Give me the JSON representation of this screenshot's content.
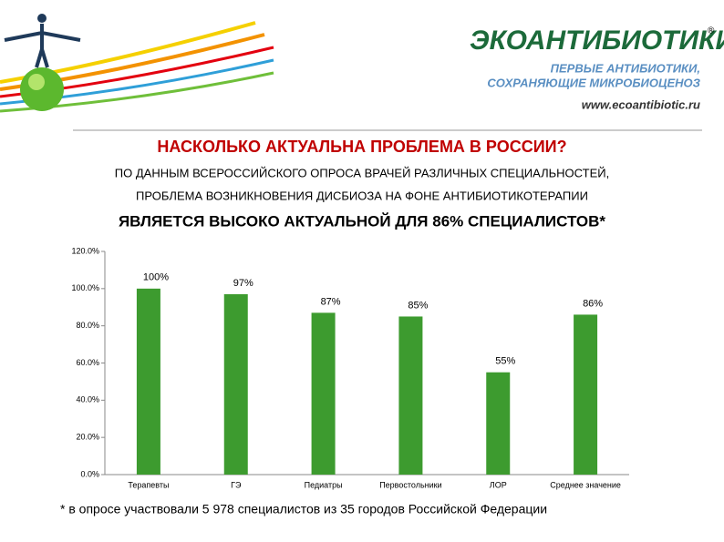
{
  "header": {
    "logo": "ЭКОАНТИБИОТИКИ",
    "registered": "®",
    "tagline1": "ПЕРВЫЕ АНТИБИОТИКИ,",
    "tagline2": "СОХРАНЯЮЩИЕ МИКРОБИОЦЕНОЗ",
    "url": "www.ecoantibiotic.ru"
  },
  "chart_data": {
    "type": "bar",
    "title": "НАСКОЛЬКО АКТУАЛЬНА ПРОБЛЕМА В РОССИИ?",
    "subtitle": [
      "ПО ДАННЫМ ВСЕРОССИЙСКОГО ОПРОСА ВРАЧЕЙ РАЗЛИЧНЫХ СПЕЦИАЛЬНОСТЕЙ,",
      "ПРОБЛЕМА ВОЗНИКНОВЕНИЯ ДИСБИОЗА НА ФОНЕ АНТИБИОТИКОТЕРАПИИ"
    ],
    "headline": "ЯВЛЯЕТСЯ ВЫСОКО АКТУАЛЬНОЙ ДЛЯ 86% СПЕЦИАЛИСТОВ*",
    "categories": [
      "Терапевты",
      "ГЭ",
      "Педиатры",
      "Первостольники",
      "ЛОР",
      "Среднее значение"
    ],
    "values": [
      100,
      97,
      87,
      85,
      55,
      86
    ],
    "value_labels": [
      "100%",
      "97%",
      "87%",
      "85%",
      "55%",
      "86%"
    ],
    "color": "#3d9b2f",
    "ylim": [
      0,
      120
    ],
    "yticks": [
      {
        "value": 0,
        "label": "0.0%"
      },
      {
        "value": 20,
        "label": "20.0%"
      },
      {
        "value": 40,
        "label": "40.0%"
      },
      {
        "value": 60,
        "label": "60.0%"
      },
      {
        "value": 80,
        "label": "80.0%"
      },
      {
        "value": 100,
        "label": "100.0%"
      },
      {
        "value": 120,
        "label": "120.0%"
      }
    ],
    "grid": false
  },
  "footnote": "* в опросе участвовали 5 978 специалистов из 35 городов Российской Федерации"
}
